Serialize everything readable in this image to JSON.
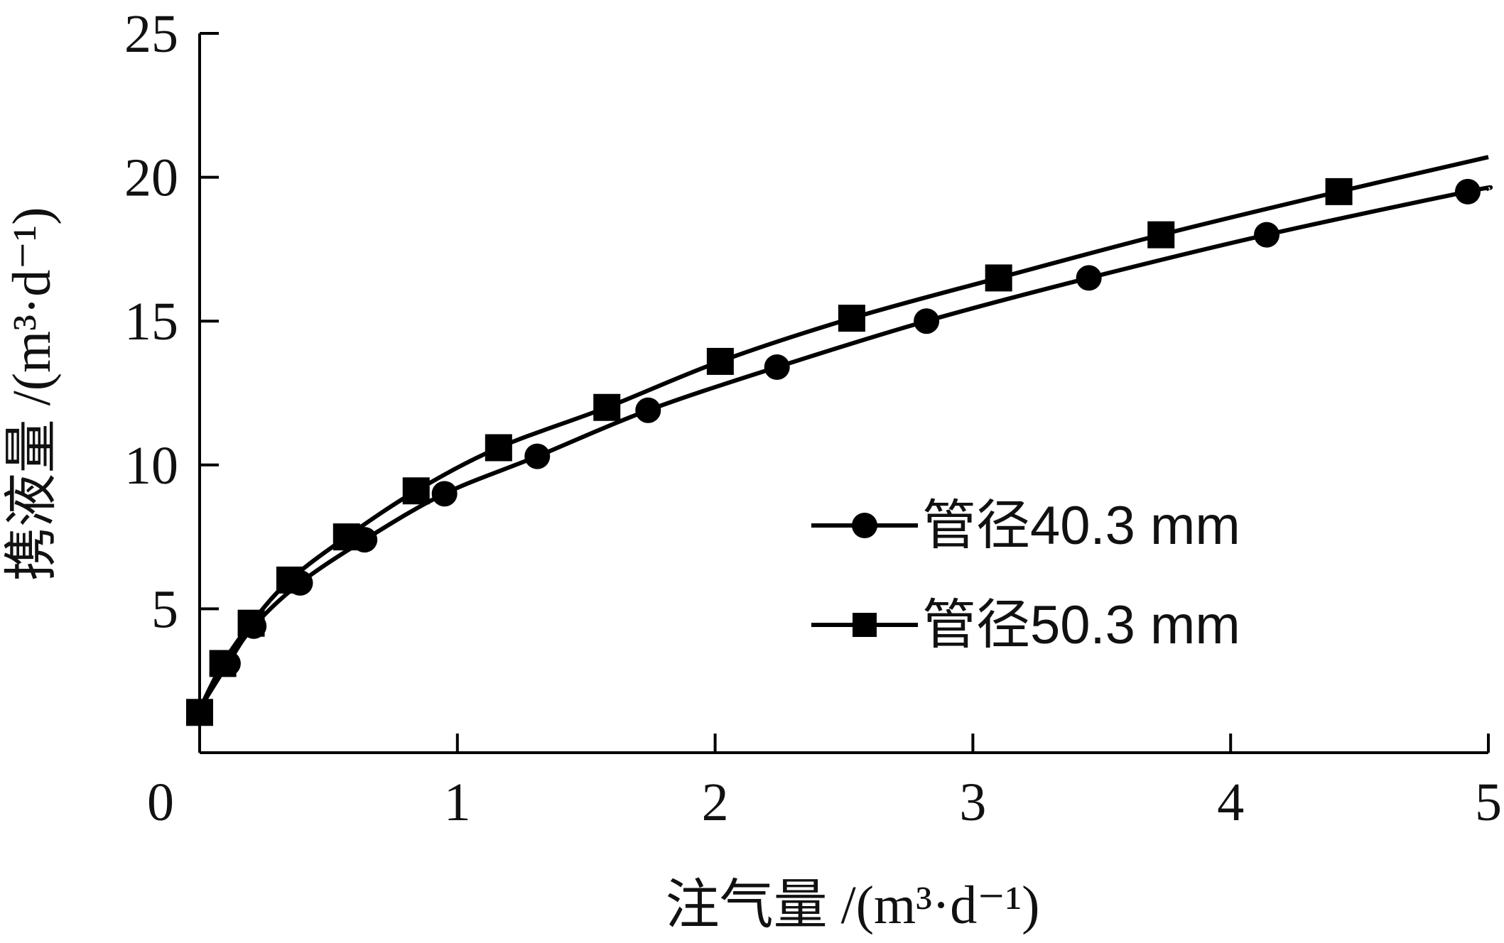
{
  "chart_data": {
    "type": "line",
    "title": "",
    "xlabel": "注气量 /(m³·d⁻¹)",
    "ylabel": "携液量 /(m³·d⁻¹)",
    "xlim": [
      0,
      5
    ],
    "ylim": [
      0,
      25
    ],
    "xticks": [
      "0",
      "1",
      "2",
      "3",
      "4",
      "5"
    ],
    "yticks": [
      "5",
      "10",
      "15",
      "20",
      "25"
    ],
    "grid": false,
    "legend_position": "right-center",
    "series": [
      {
        "name": "管径40.3 mm",
        "marker": "circle",
        "x": [
          0.11,
          0.21,
          0.39,
          0.64,
          0.95,
          1.31,
          1.74,
          2.24,
          2.82,
          3.45,
          4.14,
          4.92
        ],
        "y": [
          3.1,
          4.4,
          5.9,
          7.4,
          9.0,
          10.3,
          11.9,
          13.4,
          15.0,
          16.5,
          18.0,
          19.5
        ],
        "curve_end": [
          5.0,
          19.6
        ]
      },
      {
        "name": "管径50.3 mm",
        "marker": "square",
        "x": [
          0.0,
          0.09,
          0.2,
          0.35,
          0.57,
          0.84,
          1.16,
          1.58,
          2.02,
          2.53,
          3.1,
          3.73,
          4.42
        ],
        "y": [
          1.4,
          3.1,
          4.5,
          6.0,
          7.5,
          9.1,
          10.6,
          12.0,
          13.6,
          15.1,
          16.5,
          18.0,
          19.5
        ],
        "curve_end": [
          5.0,
          20.7
        ]
      }
    ],
    "color": "#000000"
  }
}
